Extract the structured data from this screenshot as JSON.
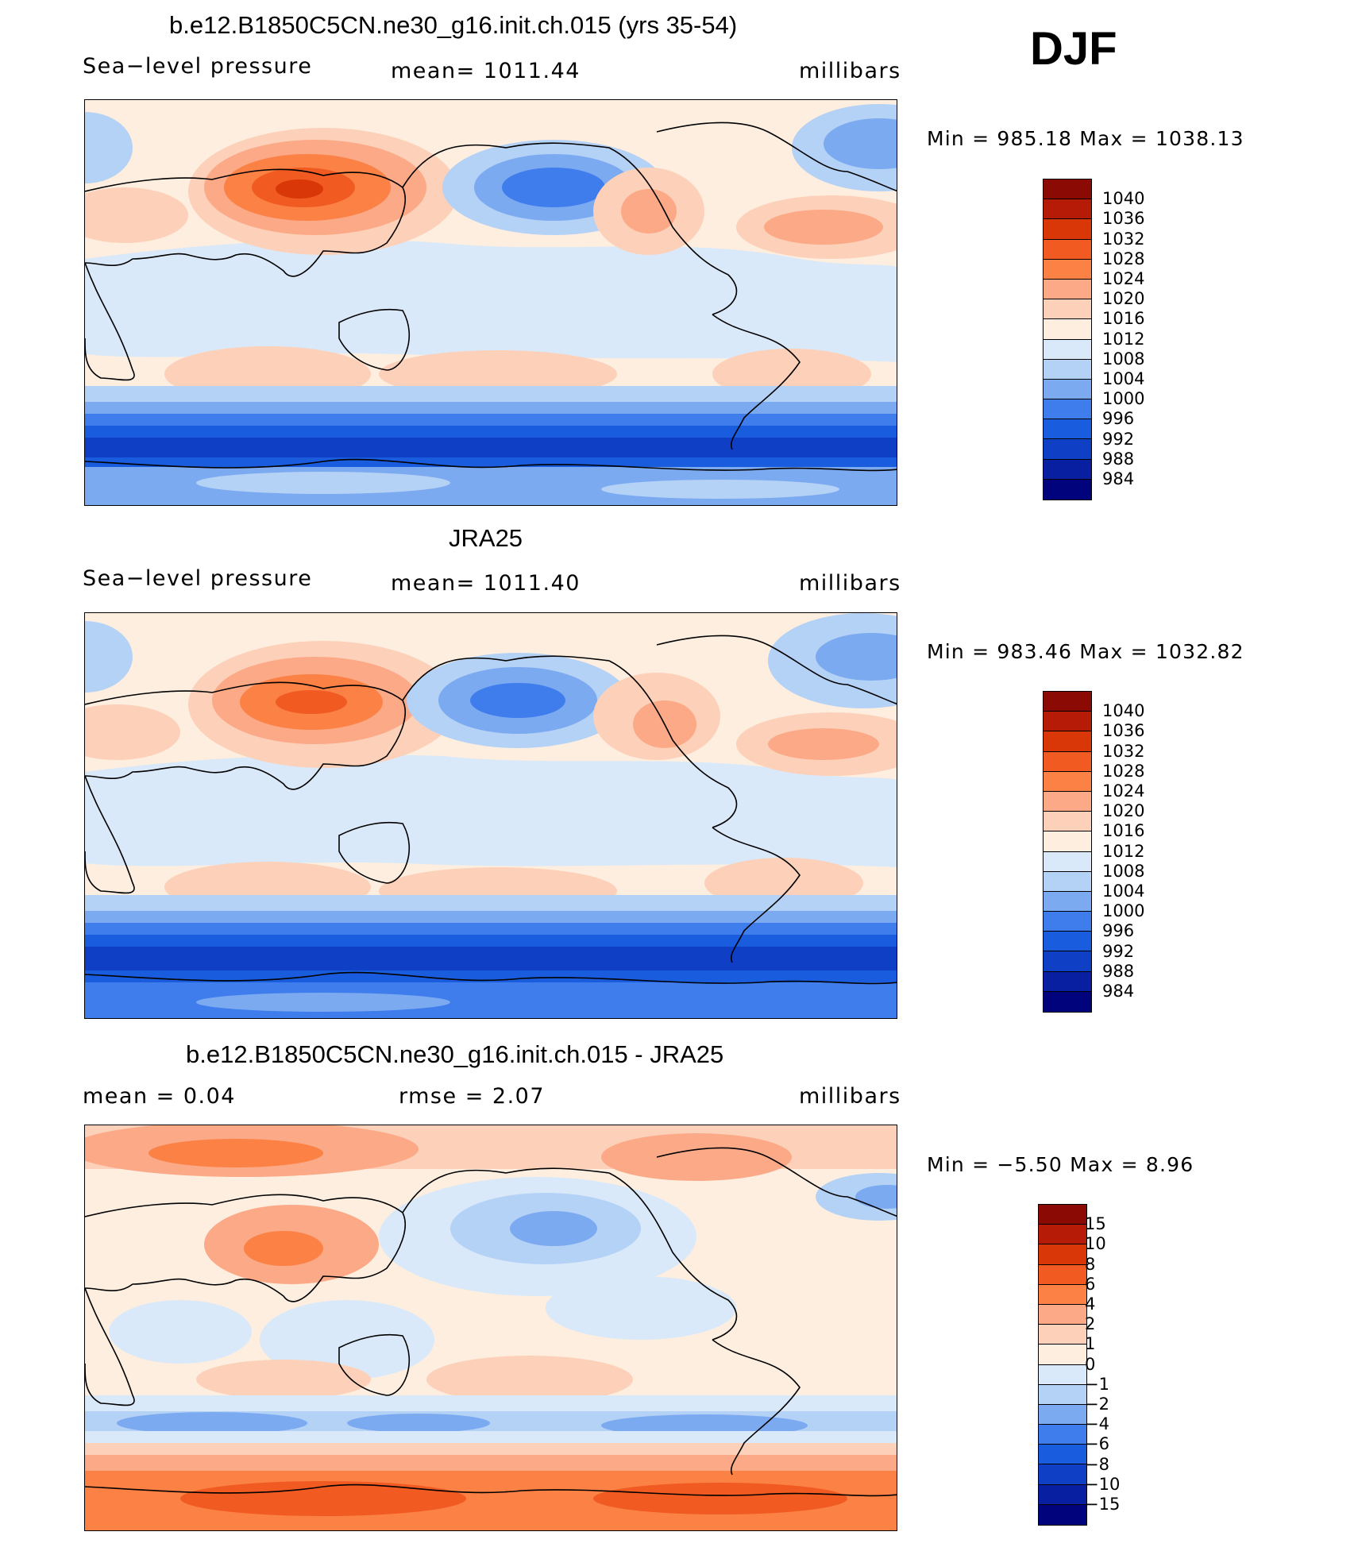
{
  "season": "DJF",
  "panels": [
    {
      "id": "model",
      "title": "b.e12.B1850C5CN.ne30_g16.init.ch.015 (yrs 35-54)",
      "left_label": "Sea−level pressure",
      "center_label": "mean=  1011.44",
      "units": "millibars",
      "minmax": "Min  =  985.18  Max  =  1038.13",
      "colorbar": {
        "labels": [
          "1040",
          "1036",
          "1032",
          "1028",
          "1024",
          "1020",
          "1016",
          "1012",
          "1008",
          "1004",
          "1000",
          "996",
          "992",
          "988",
          "984"
        ],
        "colors": [
          "#8b0a03",
          "#b51b06",
          "#d93708",
          "#f15a21",
          "#fb8145",
          "#fca987",
          "#fdd1b9",
          "#fdeedf",
          "#d9e9f9",
          "#b4d1f6",
          "#7caaf1",
          "#3f7ded",
          "#195cde",
          "#0e3fc5",
          "#071fa0",
          "#01037d"
        ]
      }
    },
    {
      "id": "obs",
      "title": "JRA25",
      "left_label": "Sea−level pressure",
      "center_label": "mean=  1011.40",
      "units": "millibars",
      "minmax": "Min  =  983.46  Max  =  1032.82",
      "colorbar": {
        "labels": [
          "1040",
          "1036",
          "1032",
          "1028",
          "1024",
          "1020",
          "1016",
          "1012",
          "1008",
          "1004",
          "1000",
          "996",
          "992",
          "988",
          "984"
        ],
        "colors": [
          "#8b0a03",
          "#b51b06",
          "#d93708",
          "#f15a21",
          "#fb8145",
          "#fca987",
          "#fdd1b9",
          "#fdeedf",
          "#d9e9f9",
          "#b4d1f6",
          "#7caaf1",
          "#3f7ded",
          "#195cde",
          "#0e3fc5",
          "#071fa0",
          "#01037d"
        ]
      }
    },
    {
      "id": "diff",
      "title": "b.e12.B1850C5CN.ne30_g16.init.ch.015 - JRA25",
      "left_label": "mean  =     0.04",
      "center_label": "rmse  =     2.07",
      "units": "millibars",
      "minmax": "Min  =    −5.50  Max  =     8.96",
      "colorbar": {
        "labels": [
          "15",
          "10",
          "8",
          "6",
          "4",
          "2",
          "1",
          "0",
          "−1",
          "−2",
          "−4",
          "−6",
          "−8",
          "−10",
          "−15"
        ],
        "colors": [
          "#8b0a03",
          "#b51b06",
          "#d93708",
          "#f15a21",
          "#fb8145",
          "#fca987",
          "#fdd1b9",
          "#fdeedf",
          "#d9e9f9",
          "#b4d1f6",
          "#7caaf1",
          "#3f7ded",
          "#195cde",
          "#0e3fc5",
          "#071fa0",
          "#01037d"
        ]
      }
    }
  ]
}
